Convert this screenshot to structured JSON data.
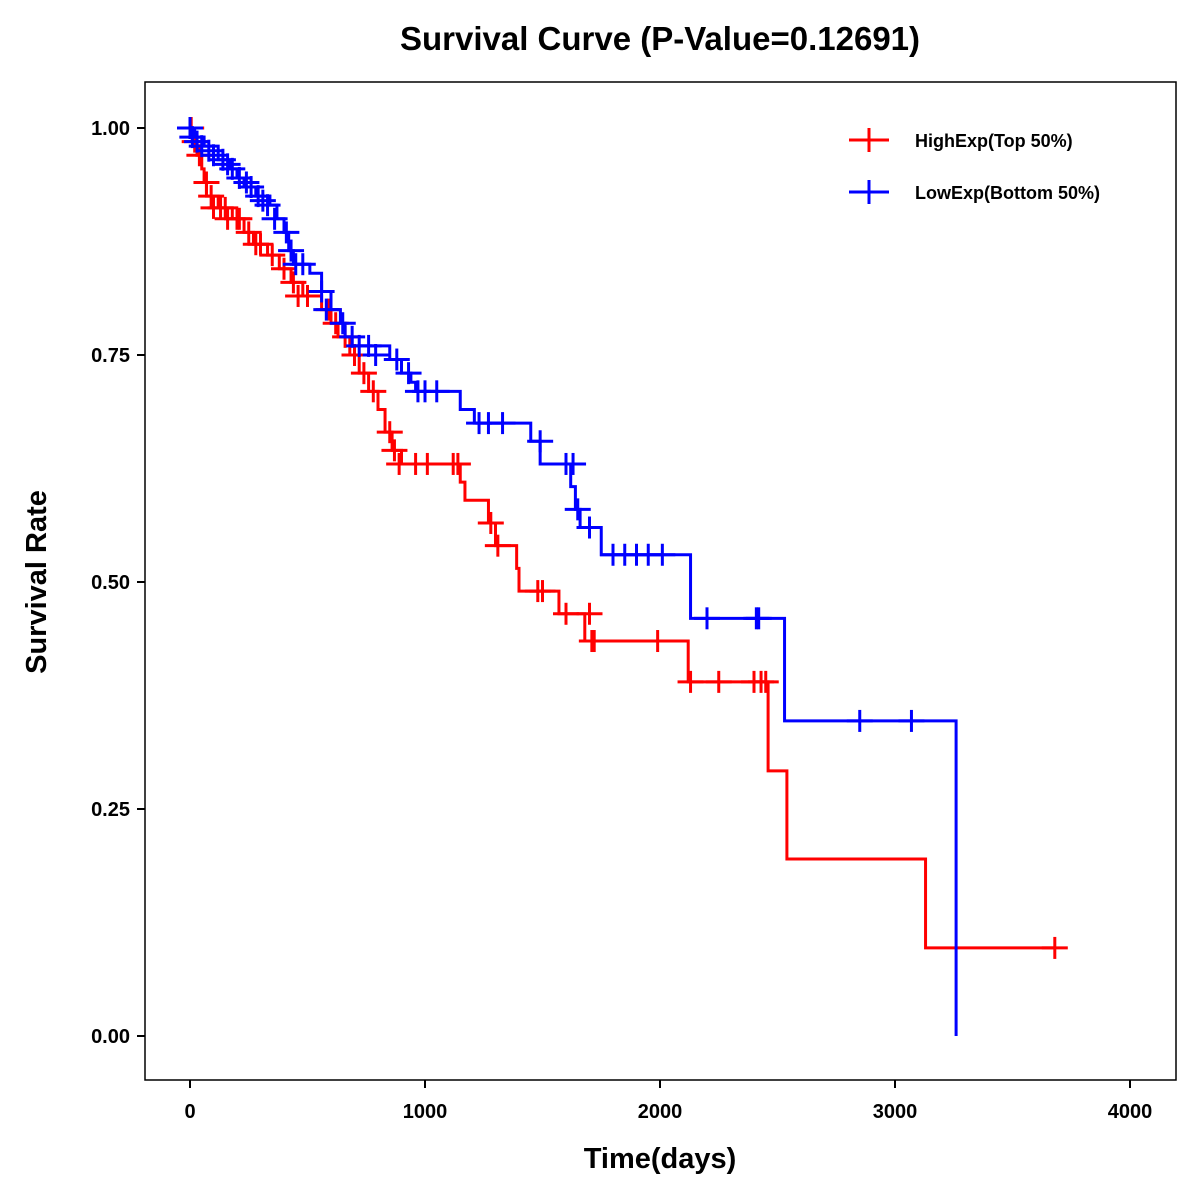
{
  "chart_data": {
    "type": "line",
    "subtype": "kaplan-meier-step",
    "title": "Survival Curve (P-Value=0.12691)",
    "xlabel": "Time(days)",
    "ylabel": "Survival Rate",
    "xlim": [
      -200,
      4150
    ],
    "ylim": [
      -0.05,
      1.05
    ],
    "xticks": [
      0,
      1000,
      2000,
      3000,
      4000
    ],
    "xtick_labels": [
      "0",
      "1000",
      "2000",
      "3000",
      "4000"
    ],
    "yticks": [
      0,
      0.25,
      0.5,
      0.75,
      1.0
    ],
    "ytick_labels": [
      "0.00",
      "0.25",
      "0.50",
      "0.75",
      "1.00"
    ],
    "grid": false,
    "legend_position": "top-right",
    "series": [
      {
        "name": "HighExp(Top 50%)",
        "color": "#ff0000",
        "steps": [
          [
            0,
            1.0
          ],
          [
            10,
            0.985
          ],
          [
            30,
            0.97
          ],
          [
            50,
            0.955
          ],
          [
            60,
            0.94
          ],
          [
            70,
            0.925
          ],
          [
            120,
            0.912
          ],
          [
            180,
            0.9
          ],
          [
            230,
            0.885
          ],
          [
            270,
            0.872
          ],
          [
            330,
            0.86
          ],
          [
            380,
            0.845
          ],
          [
            430,
            0.83
          ],
          [
            480,
            0.815
          ],
          [
            560,
            0.8
          ],
          [
            600,
            0.785
          ],
          [
            630,
            0.77
          ],
          [
            680,
            0.75
          ],
          [
            720,
            0.73
          ],
          [
            760,
            0.71
          ],
          [
            800,
            0.69
          ],
          [
            830,
            0.665
          ],
          [
            860,
            0.645
          ],
          [
            900,
            0.63
          ],
          [
            1150,
            0.61
          ],
          [
            1170,
            0.59
          ],
          [
            1270,
            0.565
          ],
          [
            1300,
            0.54
          ],
          [
            1390,
            0.515
          ],
          [
            1400,
            0.49
          ],
          [
            1570,
            0.465
          ],
          [
            1680,
            0.435
          ],
          [
            2120,
            0.39
          ],
          [
            2460,
            0.292
          ],
          [
            2540,
            0.195
          ],
          [
            3130,
            0.097
          ],
          [
            3680,
            0.097
          ]
        ],
        "censored": [
          [
            5,
            1.0
          ],
          [
            20,
            0.985
          ],
          [
            40,
            0.97
          ],
          [
            70,
            0.94
          ],
          [
            90,
            0.925
          ],
          [
            100,
            0.912
          ],
          [
            130,
            0.912
          ],
          [
            150,
            0.912
          ],
          [
            160,
            0.9
          ],
          [
            200,
            0.9
          ],
          [
            210,
            0.9
          ],
          [
            250,
            0.885
          ],
          [
            280,
            0.872
          ],
          [
            300,
            0.872
          ],
          [
            350,
            0.86
          ],
          [
            400,
            0.845
          ],
          [
            440,
            0.83
          ],
          [
            460,
            0.815
          ],
          [
            500,
            0.815
          ],
          [
            590,
            0.8
          ],
          [
            620,
            0.785
          ],
          [
            660,
            0.77
          ],
          [
            700,
            0.75
          ],
          [
            740,
            0.73
          ],
          [
            780,
            0.71
          ],
          [
            850,
            0.665
          ],
          [
            870,
            0.645
          ],
          [
            890,
            0.63
          ],
          [
            960,
            0.63
          ],
          [
            1010,
            0.63
          ],
          [
            1120,
            0.63
          ],
          [
            1140,
            0.63
          ],
          [
            1280,
            0.565
          ],
          [
            1310,
            0.54
          ],
          [
            1480,
            0.49
          ],
          [
            1500,
            0.49
          ],
          [
            1600,
            0.465
          ],
          [
            1700,
            0.465
          ],
          [
            1710,
            0.435
          ],
          [
            1720,
            0.435
          ],
          [
            1990,
            0.435
          ],
          [
            2130,
            0.39
          ],
          [
            2250,
            0.39
          ],
          [
            2400,
            0.39
          ],
          [
            2430,
            0.39
          ],
          [
            2450,
            0.39
          ],
          [
            3680,
            0.097
          ]
        ]
      },
      {
        "name": "LowExp(Bottom 50%)",
        "color": "#0000ff",
        "steps": [
          [
            0,
            1.0
          ],
          [
            20,
            0.99
          ],
          [
            60,
            0.98
          ],
          [
            120,
            0.965
          ],
          [
            170,
            0.955
          ],
          [
            200,
            0.945
          ],
          [
            230,
            0.935
          ],
          [
            280,
            0.925
          ],
          [
            340,
            0.915
          ],
          [
            370,
            0.9
          ],
          [
            400,
            0.885
          ],
          [
            420,
            0.865
          ],
          [
            440,
            0.85
          ],
          [
            510,
            0.84
          ],
          [
            560,
            0.82
          ],
          [
            600,
            0.8
          ],
          [
            640,
            0.785
          ],
          [
            660,
            0.77
          ],
          [
            690,
            0.76
          ],
          [
            850,
            0.745
          ],
          [
            900,
            0.73
          ],
          [
            940,
            0.72
          ],
          [
            960,
            0.71
          ],
          [
            1150,
            0.69
          ],
          [
            1170,
            0.69
          ],
          [
            1210,
            0.675
          ],
          [
            1450,
            0.655
          ],
          [
            1490,
            0.63
          ],
          [
            1620,
            0.605
          ],
          [
            1640,
            0.58
          ],
          [
            1660,
            0.56
          ],
          [
            1750,
            0.53
          ],
          [
            2130,
            0.46
          ],
          [
            2530,
            0.347
          ],
          [
            3260,
            0.0
          ]
        ],
        "censored": [
          [
            0,
            1.0
          ],
          [
            10,
            0.99
          ],
          [
            30,
            0.985
          ],
          [
            50,
            0.98
          ],
          [
            80,
            0.975
          ],
          [
            100,
            0.97
          ],
          [
            140,
            0.965
          ],
          [
            160,
            0.96
          ],
          [
            180,
            0.955
          ],
          [
            210,
            0.945
          ],
          [
            240,
            0.94
          ],
          [
            260,
            0.935
          ],
          [
            290,
            0.925
          ],
          [
            310,
            0.92
          ],
          [
            330,
            0.915
          ],
          [
            360,
            0.9
          ],
          [
            410,
            0.885
          ],
          [
            430,
            0.865
          ],
          [
            450,
            0.85
          ],
          [
            480,
            0.85
          ],
          [
            560,
            0.82
          ],
          [
            580,
            0.8
          ],
          [
            650,
            0.785
          ],
          [
            690,
            0.77
          ],
          [
            720,
            0.76
          ],
          [
            760,
            0.76
          ],
          [
            790,
            0.75
          ],
          [
            880,
            0.745
          ],
          [
            930,
            0.73
          ],
          [
            970,
            0.71
          ],
          [
            1000,
            0.71
          ],
          [
            1050,
            0.71
          ],
          [
            1230,
            0.675
          ],
          [
            1270,
            0.675
          ],
          [
            1330,
            0.675
          ],
          [
            1490,
            0.655
          ],
          [
            1600,
            0.63
          ],
          [
            1630,
            0.63
          ],
          [
            1650,
            0.58
          ],
          [
            1700,
            0.56
          ],
          [
            1800,
            0.53
          ],
          [
            1850,
            0.53
          ],
          [
            1900,
            0.53
          ],
          [
            1950,
            0.53
          ],
          [
            2010,
            0.53
          ],
          [
            2200,
            0.46
          ],
          [
            2410,
            0.46
          ],
          [
            2420,
            0.46
          ],
          [
            2850,
            0.347
          ],
          [
            3070,
            0.347
          ]
        ]
      }
    ]
  }
}
